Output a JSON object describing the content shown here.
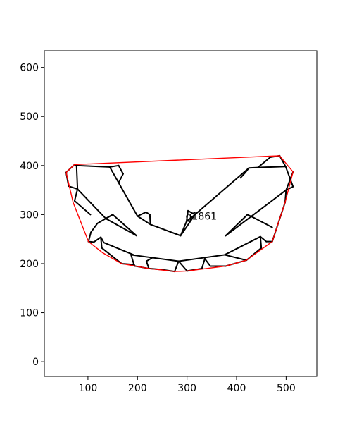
{
  "chart_data": {
    "type": "line",
    "title": "",
    "xlabel": "",
    "ylabel": "",
    "xlim": [
      12,
      562
    ],
    "ylim": [
      -30,
      634
    ],
    "xticks": [
      100,
      200,
      300,
      400,
      500
    ],
    "yticks": [
      0,
      100,
      200,
      300,
      400,
      500,
      600
    ],
    "annotation": {
      "text": "g1861",
      "x": 297,
      "y": 290
    },
    "colors": {
      "mesh": "#000000",
      "hull": "#ff0000"
    },
    "hull": [
      [
        56,
        386
      ],
      [
        73,
        402
      ],
      [
        487,
        420
      ],
      [
        514,
        387
      ],
      [
        498,
        325
      ],
      [
        472,
        245
      ],
      [
        420,
        207
      ],
      [
        378,
        195
      ],
      [
        300,
        185
      ],
      [
        275,
        184
      ],
      [
        223,
        190
      ],
      [
        168,
        200
      ],
      [
        130,
        222
      ],
      [
        101,
        245
      ],
      [
        70,
        325
      ],
      [
        56,
        386
      ]
    ],
    "segments": [
      [
        [
          56,
          386
        ],
        [
          73,
          402
        ]
      ],
      [
        [
          73,
          402
        ],
        [
          77,
          400
        ]
      ],
      [
        [
          56,
          386
        ],
        [
          61,
          358
        ]
      ],
      [
        [
          61,
          358
        ],
        [
          79,
          352
        ]
      ],
      [
        [
          77,
          400
        ],
        [
          79,
          352
        ]
      ],
      [
        [
          77,
          400
        ],
        [
          144,
          397
        ]
      ],
      [
        [
          144,
          397
        ],
        [
          162,
          400
        ]
      ],
      [
        [
          162,
          400
        ],
        [
          171,
          383
        ]
      ],
      [
        [
          171,
          383
        ],
        [
          162,
          365
        ]
      ],
      [
        [
          144,
          397
        ],
        [
          200,
          297
        ]
      ],
      [
        [
          200,
          297
        ],
        [
          217,
          305
        ]
      ],
      [
        [
          217,
          305
        ],
        [
          225,
          300
        ]
      ],
      [
        [
          225,
          300
        ],
        [
          226,
          280
        ]
      ],
      [
        [
          200,
          297
        ],
        [
          226,
          280
        ]
      ],
      [
        [
          226,
          280
        ],
        [
          287,
          257
        ]
      ],
      [
        [
          79,
          352
        ],
        [
          73,
          328
        ]
      ],
      [
        [
          73,
          328
        ],
        [
          105,
          300
        ]
      ],
      [
        [
          79,
          352
        ],
        [
          136,
          292
        ]
      ],
      [
        [
          136,
          292
        ],
        [
          150,
          300
        ]
      ],
      [
        [
          150,
          300
        ],
        [
          198,
          257
        ]
      ],
      [
        [
          136,
          292
        ],
        [
          198,
          257
        ]
      ],
      [
        [
          150,
          300
        ],
        [
          119,
          282
        ]
      ],
      [
        [
          119,
          282
        ],
        [
          106,
          264
        ]
      ],
      [
        [
          106,
          264
        ],
        [
          101,
          245
        ]
      ],
      [
        [
          101,
          245
        ],
        [
          112,
          244
        ]
      ],
      [
        [
          112,
          244
        ],
        [
          126,
          254
        ]
      ],
      [
        [
          126,
          254
        ],
        [
          132,
          243
        ]
      ],
      [
        [
          132,
          243
        ],
        [
          192,
          218
        ]
      ],
      [
        [
          126,
          254
        ],
        [
          128,
          232
        ]
      ],
      [
        [
          128,
          232
        ],
        [
          168,
          200
        ]
      ],
      [
        [
          168,
          200
        ],
        [
          193,
          198
        ]
      ],
      [
        [
          193,
          198
        ],
        [
          187,
          218
        ]
      ],
      [
        [
          193,
          198
        ],
        [
          195,
          195
        ]
      ],
      [
        [
          195,
          195
        ],
        [
          223,
          190
        ]
      ],
      [
        [
          223,
          190
        ],
        [
          218,
          205
        ]
      ],
      [
        [
          218,
          205
        ],
        [
          230,
          212
        ]
      ],
      [
        [
          187,
          218
        ],
        [
          283,
          205
        ]
      ],
      [
        [
          223,
          190
        ],
        [
          248,
          188
        ]
      ],
      [
        [
          248,
          188
        ],
        [
          275,
          184
        ]
      ],
      [
        [
          275,
          184
        ],
        [
          283,
          205
        ]
      ],
      [
        [
          283,
          205
        ],
        [
          300,
          185
        ]
      ],
      [
        [
          300,
          185
        ],
        [
          330,
          190
        ]
      ],
      [
        [
          330,
          190
        ],
        [
          336,
          210
        ]
      ],
      [
        [
          336,
          210
        ],
        [
          347,
          195
        ]
      ],
      [
        [
          283,
          205
        ],
        [
          376,
          218
        ]
      ],
      [
        [
          347,
          195
        ],
        [
          378,
          195
        ]
      ],
      [
        [
          378,
          195
        ],
        [
          420,
          207
        ]
      ],
      [
        [
          376,
          218
        ],
        [
          420,
          207
        ]
      ],
      [
        [
          376,
          218
        ],
        [
          448,
          255
        ]
      ],
      [
        [
          448,
          255
        ],
        [
          460,
          245
        ]
      ],
      [
        [
          460,
          245
        ],
        [
          472,
          245
        ]
      ],
      [
        [
          472,
          245
        ],
        [
          498,
          325
        ]
      ],
      [
        [
          448,
          255
        ],
        [
          450,
          232
        ]
      ],
      [
        [
          450,
          232
        ],
        [
          420,
          207
        ]
      ],
      [
        [
          378,
          257
        ],
        [
          422,
          300
        ]
      ],
      [
        [
          422,
          300
        ],
        [
          436,
          293
        ]
      ],
      [
        [
          436,
          293
        ],
        [
          472,
          274
        ]
      ],
      [
        [
          378,
          257
        ],
        [
          500,
          350
        ]
      ],
      [
        [
          500,
          350
        ],
        [
          514,
          387
        ]
      ],
      [
        [
          500,
          350
        ],
        [
          498,
          325
        ]
      ],
      [
        [
          500,
          350
        ],
        [
          514,
          357
        ]
      ],
      [
        [
          514,
          357
        ],
        [
          499,
          398
        ]
      ],
      [
        [
          499,
          398
        ],
        [
          487,
          420
        ]
      ],
      [
        [
          487,
          420
        ],
        [
          468,
          417
        ]
      ],
      [
        [
          468,
          417
        ],
        [
          443,
          396
        ]
      ],
      [
        [
          499,
          398
        ],
        [
          443,
          396
        ]
      ],
      [
        [
          443,
          396
        ],
        [
          425,
          395
        ]
      ],
      [
        [
          425,
          395
        ],
        [
          418,
          386
        ]
      ],
      [
        [
          418,
          386
        ],
        [
          408,
          375
        ]
      ],
      [
        [
          425,
          395
        ],
        [
          316,
          300
        ]
      ],
      [
        [
          316,
          300
        ],
        [
          287,
          257
        ]
      ],
      [
        [
          316,
          300
        ],
        [
          302,
          308
        ]
      ],
      [
        [
          302,
          308
        ],
        [
          299,
          286
        ]
      ],
      [
        [
          316,
          300
        ],
        [
          299,
          286
        ]
      ],
      [
        [
          299,
          286
        ],
        [
          287,
          257
        ]
      ]
    ]
  }
}
